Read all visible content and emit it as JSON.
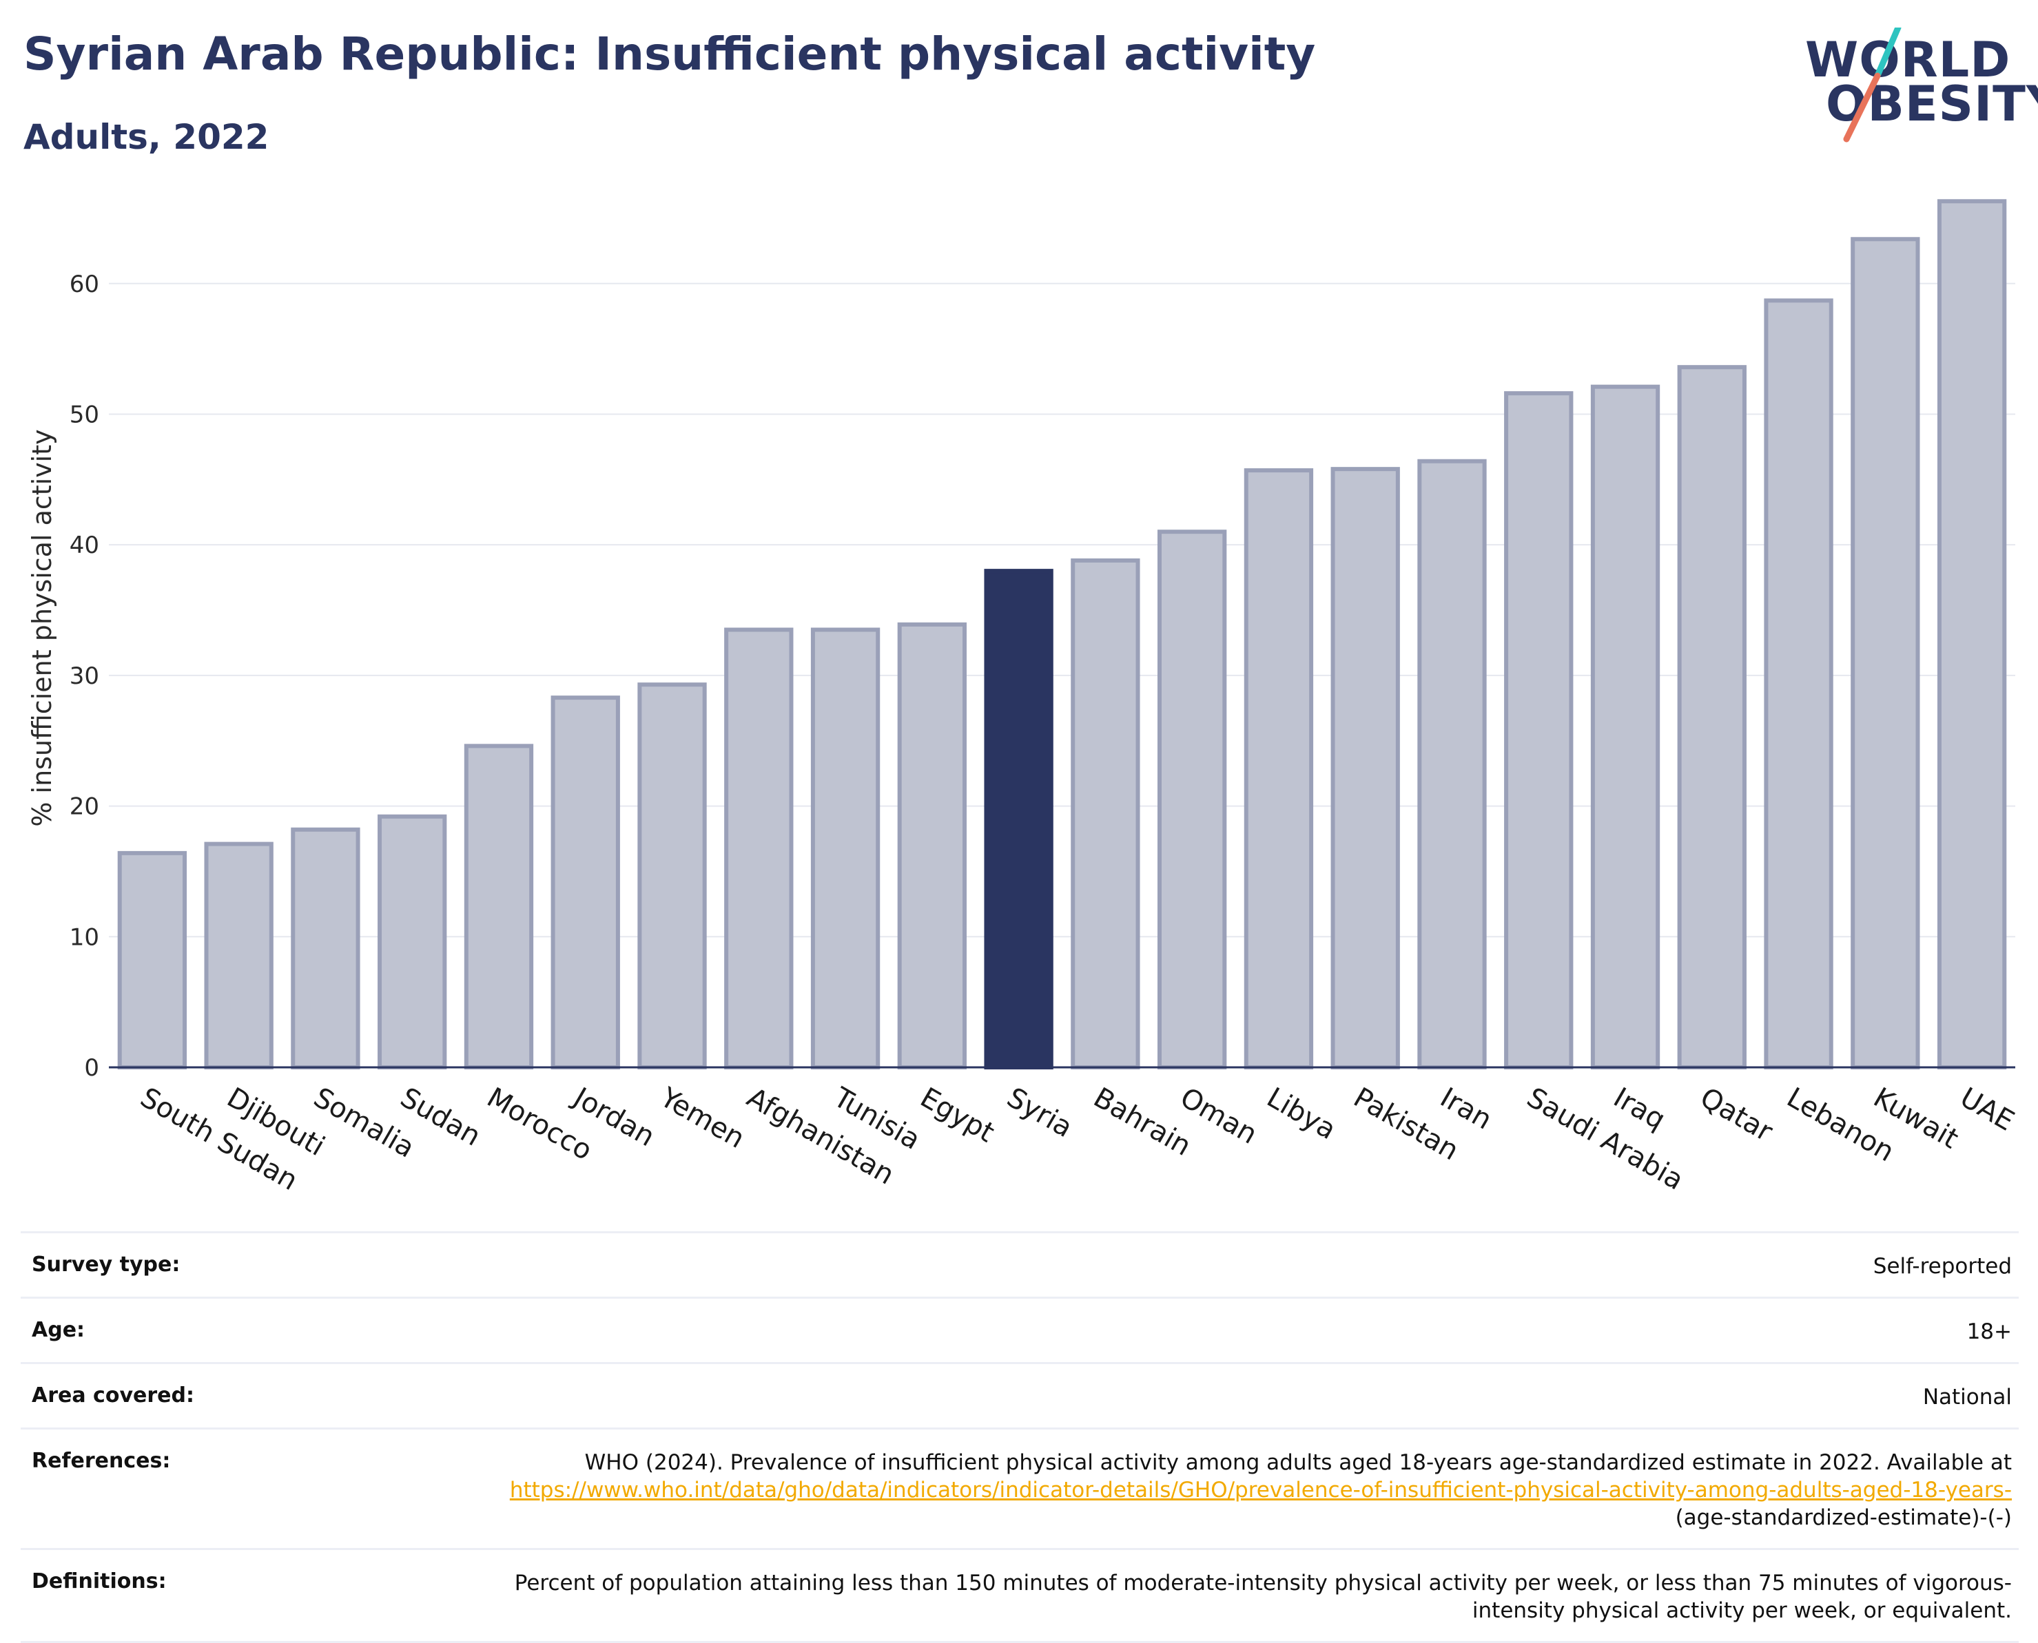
{
  "header": {
    "title": "Syrian Arab Republic: Insufficient physical activity",
    "subtitle": "Adults, 2022"
  },
  "logo": {
    "line1": "WORLD",
    "line2": "OBESITY",
    "slash_colors": [
      "#2ec4c0",
      "#e8735a"
    ]
  },
  "chart_data": {
    "type": "bar",
    "categories": [
      "South Sudan",
      "Djibouti",
      "Somalia",
      "Sudan",
      "Morocco",
      "Jordan",
      "Yemen",
      "Afghanistan",
      "Tunisia",
      "Egypt",
      "Syria",
      "Bahrain",
      "Oman",
      "Libya",
      "Pakistan",
      "Iran",
      "Saudi Arabia",
      "Iraq",
      "Qatar",
      "Lebanon",
      "Kuwait",
      "UAE"
    ],
    "values": [
      16.4,
      17.1,
      18.2,
      19.2,
      24.6,
      28.3,
      29.3,
      33.5,
      33.5,
      33.9,
      38.0,
      38.8,
      41.0,
      45.7,
      45.8,
      46.4,
      51.6,
      52.1,
      53.6,
      58.7,
      63.4,
      66.3
    ],
    "highlight": "Syria",
    "xlabel": "",
    "ylabel": "% insufficient physical activity",
    "ylim": [
      0,
      68
    ],
    "yticks": [
      0,
      10,
      20,
      30,
      40,
      50,
      60
    ],
    "grid": true,
    "colors": {
      "bar": "#bfc3d1",
      "bar_edge": "#9aa0b8",
      "highlight": "#2a3561",
      "grid": "#e6e8ef",
      "axis": "#2a3561"
    }
  },
  "meta": {
    "survey_type": {
      "label": "Survey type:",
      "value": "Self-reported"
    },
    "age": {
      "label": "Age:",
      "value": "18+"
    },
    "area": {
      "label": "Area covered:",
      "value": "National"
    },
    "references": {
      "label": "References:",
      "text": "WHO (2024). Prevalence of insufficient physical activity among adults aged 18-years age-standardized estimate in 2022. Available at",
      "link": "https://www.who.int/data/gho/data/indicators/indicator-details/GHO/prevalence-of-insufficient-physical-activity-among-adults-aged-18-years-",
      "suffix": "(age-standardized-estimate)-(-)"
    },
    "definitions": {
      "label": "Definitions:",
      "value": "Percent of population attaining less than 150 minutes of moderate-intensity physical activity per week, or less than 75 minutes of vigorous-intensity physical activity per week, or equivalent."
    }
  }
}
